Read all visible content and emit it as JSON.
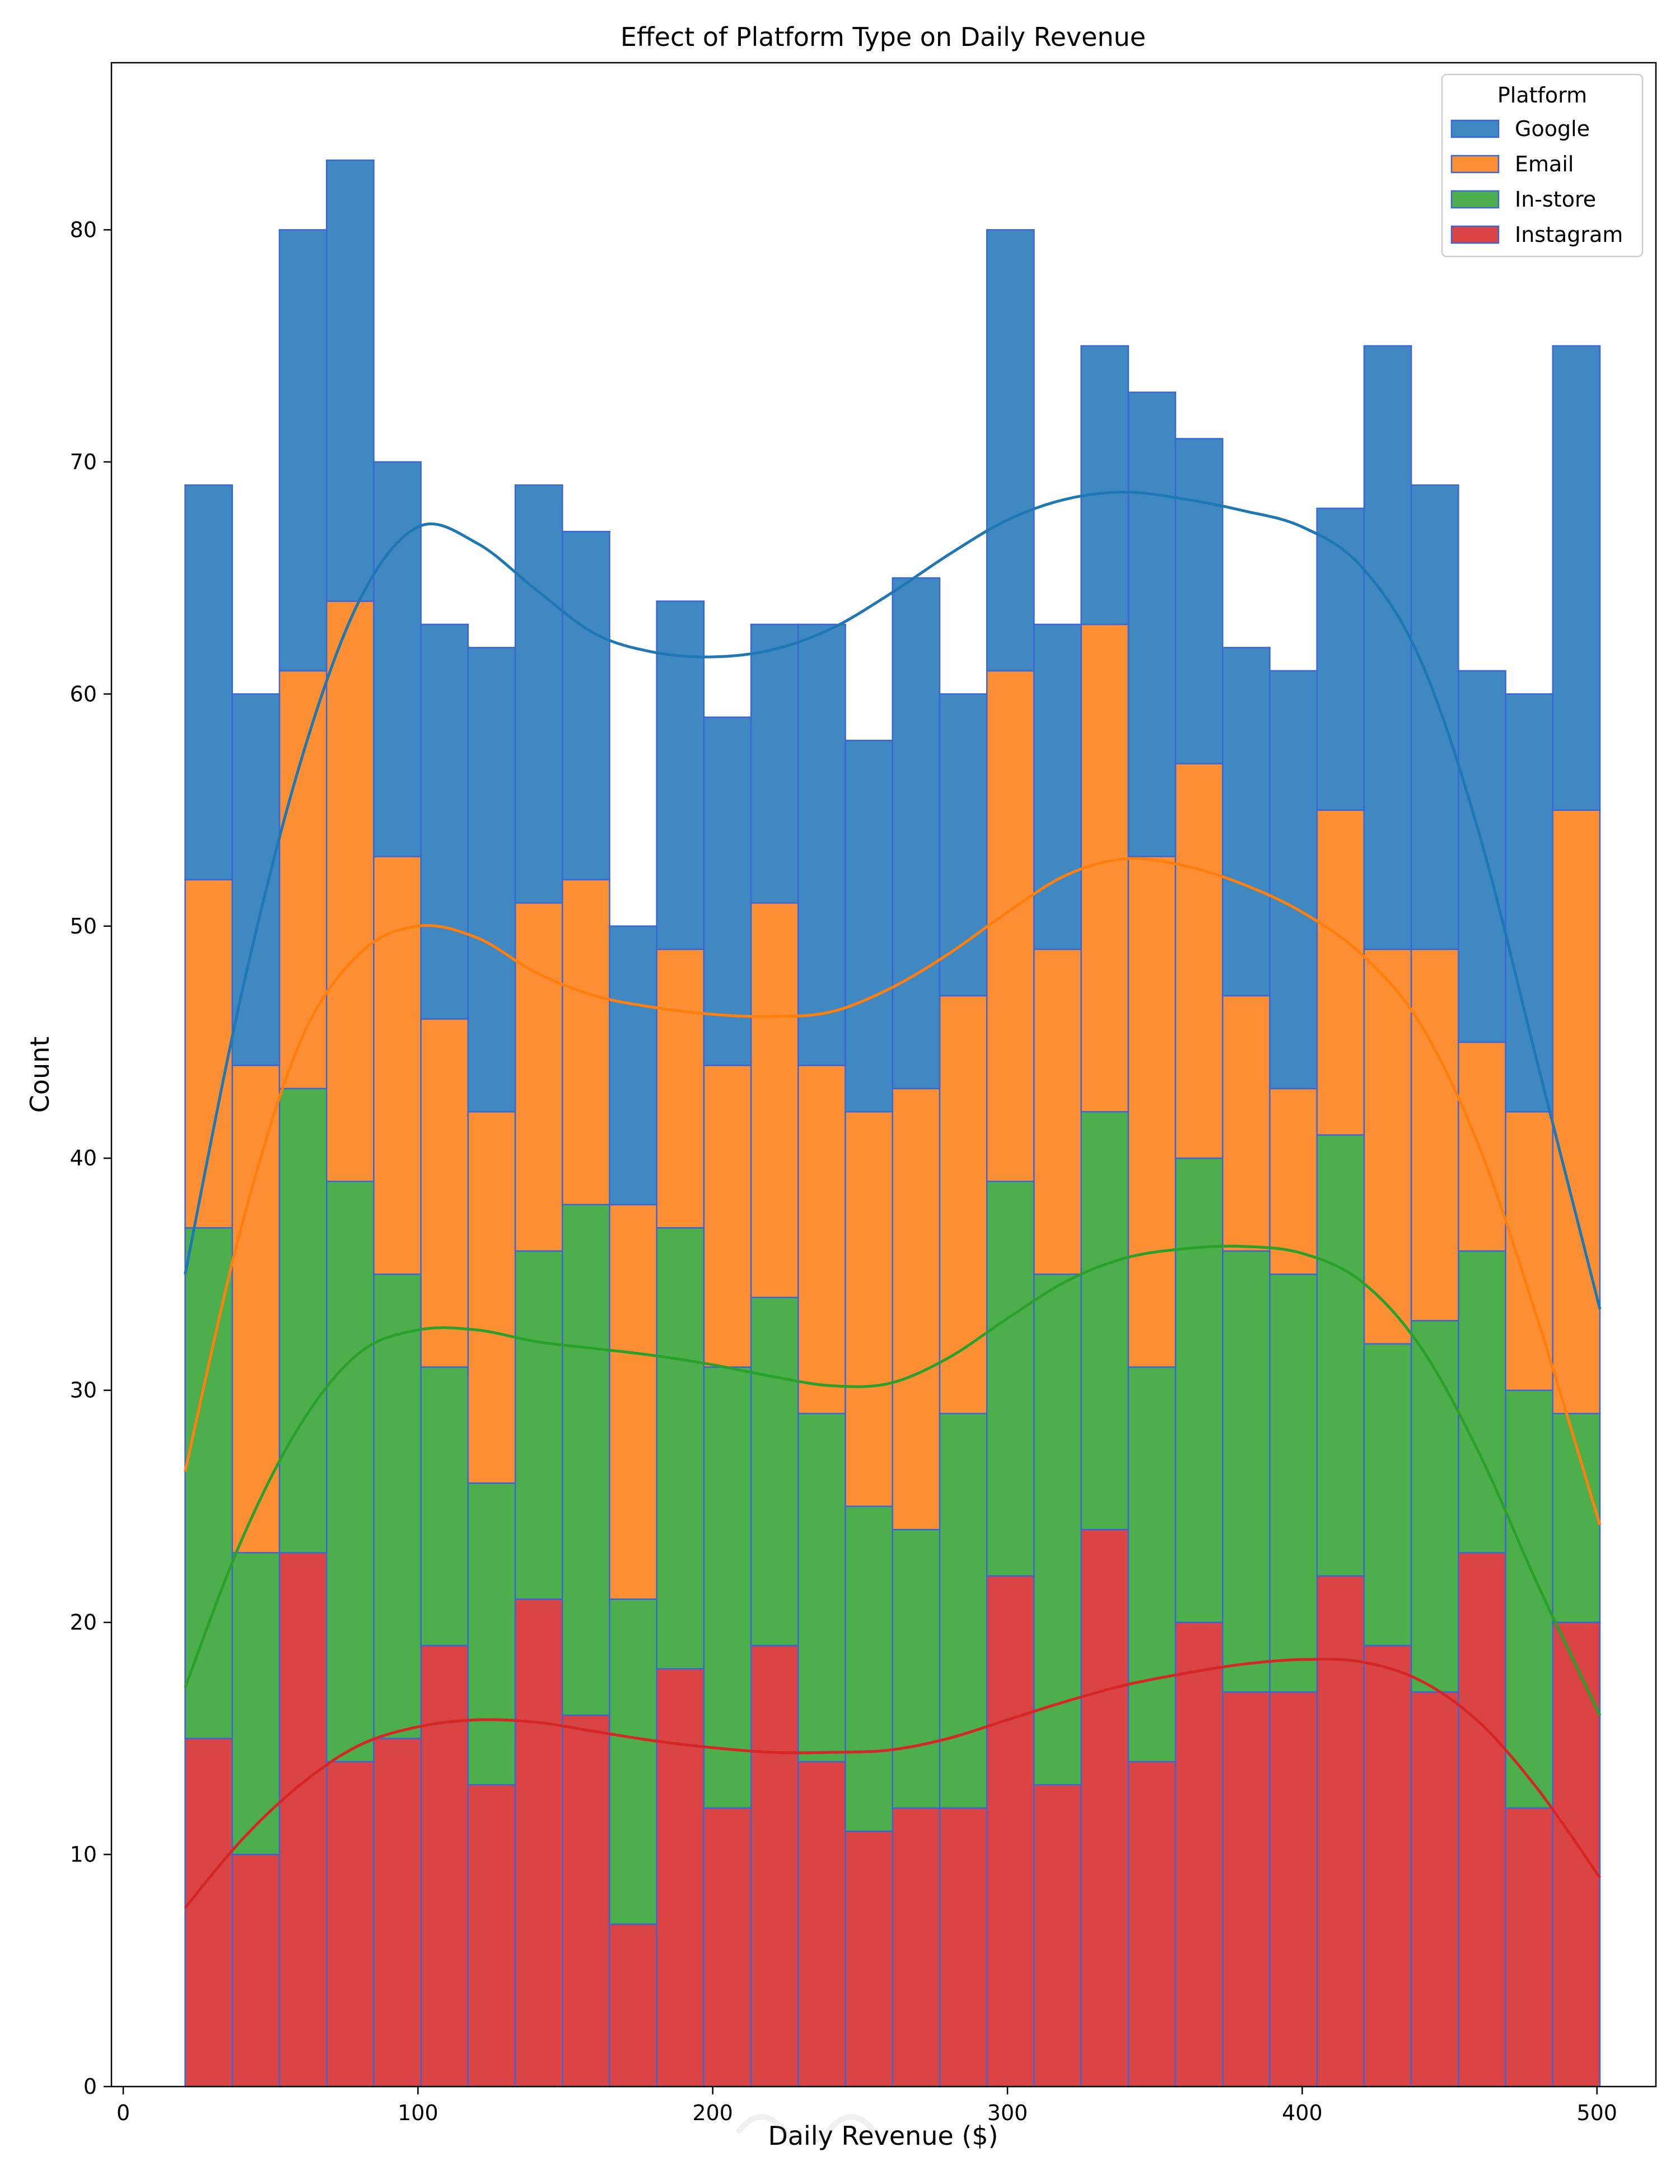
{
  "chart_data": {
    "type": "bar",
    "stacked": true,
    "title": "Effect of Platform Type on Daily Revenue",
    "xlabel": "Daily Revenue ($)",
    "ylabel": "Count",
    "xlim": [
      -4,
      520
    ],
    "ylim": [
      0,
      87.2
    ],
    "xticks": [
      0,
      100,
      200,
      300,
      400,
      500
    ],
    "yticks": [
      0,
      10,
      20,
      30,
      40,
      50,
      60,
      70,
      80
    ],
    "bin_edges": [
      21,
      37,
      53,
      69,
      85,
      101,
      117,
      133,
      149,
      165,
      181,
      197,
      213,
      229,
      245,
      261,
      277,
      293,
      309,
      325,
      341,
      357,
      373,
      389,
      405,
      421,
      437,
      453,
      469,
      485,
      501
    ],
    "legend": {
      "title": "Platform",
      "position": "top-right"
    },
    "series": [
      {
        "name": "Instagram",
        "color": "#d62728",
        "values": [
          15,
          10,
          23,
          14,
          15,
          19,
          13,
          21,
          16,
          7,
          18,
          12,
          19,
          14,
          11,
          12,
          12,
          22,
          13,
          24,
          14,
          20,
          17,
          17,
          22,
          19,
          17,
          23,
          12,
          20
        ]
      },
      {
        "name": "In-store",
        "color": "#2ca02c",
        "values": [
          22,
          13,
          20,
          25,
          20,
          12,
          13,
          15,
          22,
          14,
          19,
          19,
          15,
          15,
          14,
          12,
          17,
          17,
          22,
          18,
          17,
          20,
          19,
          18,
          19,
          13,
          16,
          13,
          18,
          9
        ]
      },
      {
        "name": "Email",
        "color": "#ff7f0e",
        "values": [
          15,
          21,
          18,
          25,
          18,
          15,
          16,
          15,
          14,
          17,
          12,
          13,
          17,
          15,
          17,
          19,
          18,
          22,
          14,
          21,
          22,
          17,
          11,
          8,
          14,
          17,
          16,
          9,
          12,
          26
        ]
      },
      {
        "name": "Google",
        "color": "#1f77b4",
        "values": [
          17,
          16,
          19,
          19,
          17,
          17,
          20,
          18,
          15,
          12,
          15,
          15,
          12,
          19,
          16,
          22,
          13,
          19,
          14,
          12,
          20,
          14,
          15,
          18,
          13,
          26,
          20,
          16,
          18,
          20
        ]
      }
    ],
    "kde_curves": [
      {
        "name": "Google",
        "color": "#1f77b4",
        "x": [
          21,
          40,
          60,
          80,
          100,
          120,
          140,
          160,
          180,
          200,
          220,
          240,
          260,
          280,
          300,
          320,
          340,
          360,
          380,
          400,
          420,
          440,
          460,
          480,
          501
        ],
        "y": [
          35,
          47,
          57,
          64,
          67.2,
          66.5,
          64.5,
          62.6,
          61.8,
          61.6,
          61.9,
          62.8,
          64.3,
          66,
          67.5,
          68.4,
          68.7,
          68.4,
          67.9,
          67.2,
          65.5,
          61.5,
          54,
          44,
          33.5
        ]
      },
      {
        "name": "Email",
        "color": "#ff7f0e",
        "x": [
          21,
          40,
          60,
          80,
          100,
          120,
          140,
          160,
          180,
          200,
          220,
          240,
          260,
          280,
          300,
          320,
          340,
          360,
          380,
          400,
          420,
          440,
          460,
          480,
          501
        ],
        "y": [
          26.5,
          37,
          45,
          48.8,
          50,
          49.5,
          48,
          47,
          46.5,
          46.2,
          46.1,
          46.3,
          47.3,
          48.8,
          50.6,
          52.2,
          52.9,
          52.6,
          51.8,
          50.6,
          48.8,
          45.8,
          40.5,
          33,
          24.2
        ]
      },
      {
        "name": "In-store",
        "color": "#2ca02c",
        "x": [
          21,
          40,
          60,
          80,
          100,
          120,
          140,
          160,
          180,
          200,
          220,
          240,
          260,
          280,
          300,
          320,
          340,
          360,
          380,
          400,
          420,
          440,
          460,
          480,
          501
        ],
        "y": [
          17.2,
          23.5,
          28.5,
          31.6,
          32.6,
          32.6,
          32.1,
          31.8,
          31.5,
          31.1,
          30.6,
          30.2,
          30.3,
          31.4,
          33.1,
          34.7,
          35.7,
          36.1,
          36.2,
          35.9,
          34.7,
          31.9,
          27.3,
          21.6,
          16
        ]
      },
      {
        "name": "Instagram",
        "color": "#d62728",
        "x": [
          21,
          40,
          60,
          80,
          100,
          120,
          140,
          160,
          180,
          200,
          220,
          240,
          260,
          280,
          300,
          320,
          340,
          360,
          380,
          400,
          420,
          440,
          460,
          480,
          501
        ],
        "y": [
          7.7,
          10.6,
          13,
          14.7,
          15.5,
          15.8,
          15.7,
          15.3,
          14.9,
          14.6,
          14.4,
          14.4,
          14.5,
          15,
          15.8,
          16.6,
          17.3,
          17.8,
          18.2,
          18.4,
          18.3,
          17.5,
          15.7,
          12.8,
          9
        ]
      }
    ]
  }
}
